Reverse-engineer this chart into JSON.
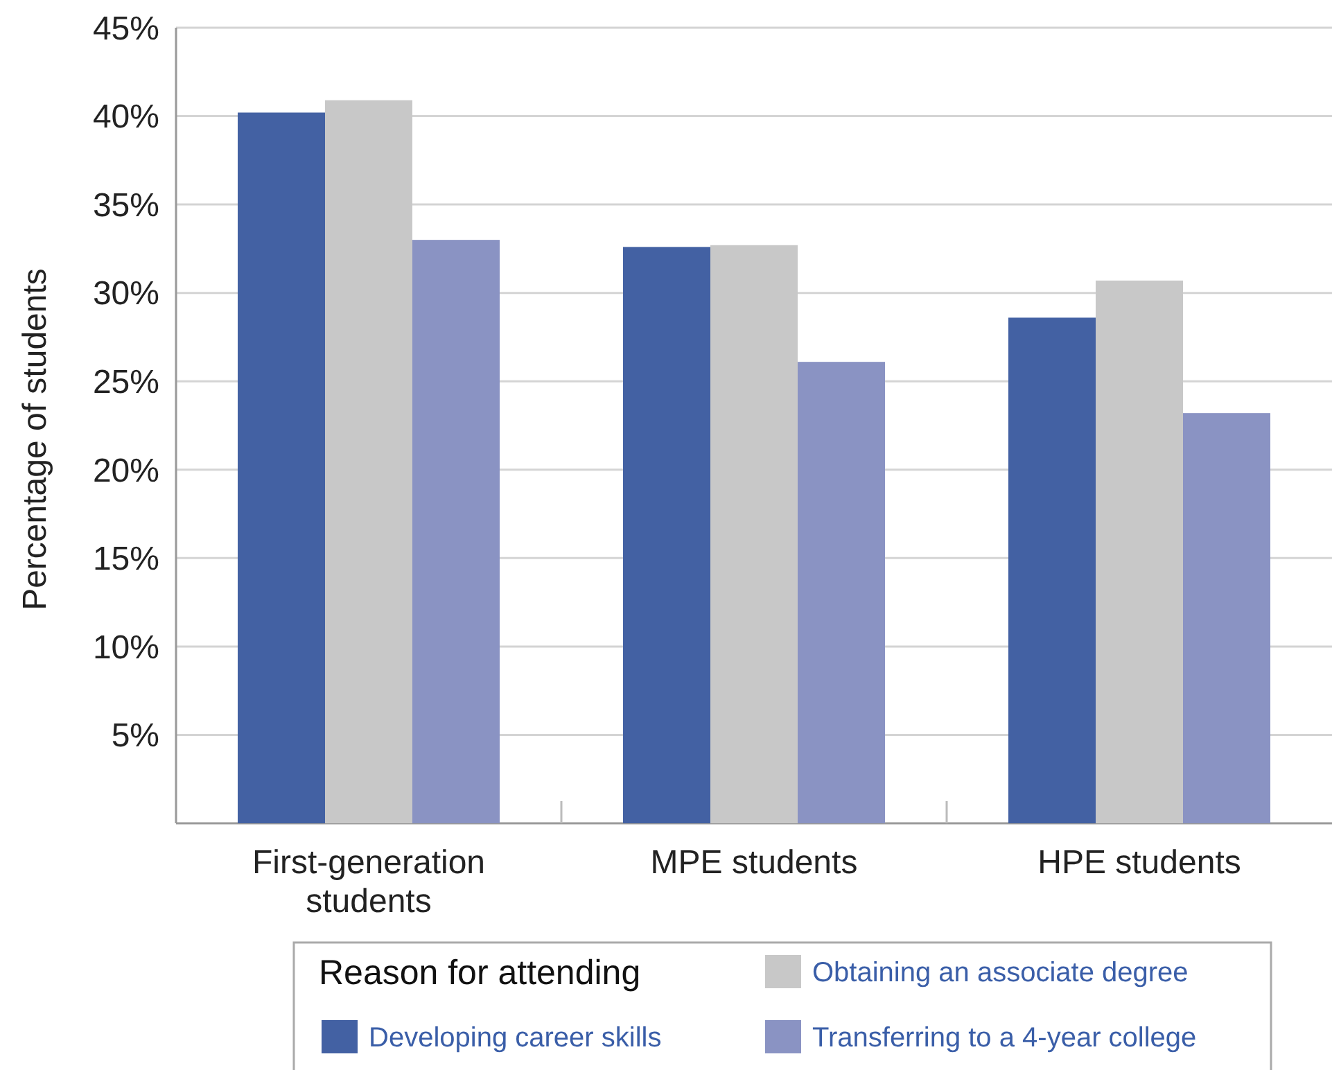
{
  "chart_data": {
    "type": "bar",
    "ylabel": "Percentage of students",
    "legend_title": "Reason for attending",
    "categories": [
      "First-generation\nstudents",
      "MPE students",
      "HPE students"
    ],
    "series": [
      {
        "name": "Developing career skills",
        "color": "#4361a3",
        "values": [
          40.2,
          32.6,
          28.6
        ]
      },
      {
        "name": "Obtaining an associate degree",
        "color": "#c8c8c8",
        "values": [
          40.9,
          32.7,
          30.7
        ]
      },
      {
        "name": "Transferring to a 4-year college",
        "color": "#8a93c3",
        "values": [
          33.0,
          26.1,
          23.2
        ]
      }
    ],
    "ylim": [
      0,
      45
    ],
    "yticks": [
      {
        "value": 5,
        "label": "5%"
      },
      {
        "value": 10,
        "label": "10%"
      },
      {
        "value": 15,
        "label": "15%"
      },
      {
        "value": 20,
        "label": "20%"
      },
      {
        "value": 25,
        "label": "25%"
      },
      {
        "value": 30,
        "label": "30%"
      },
      {
        "value": 35,
        "label": "35%"
      },
      {
        "value": 40,
        "label": "40%"
      },
      {
        "value": 45,
        "label": "45%"
      }
    ],
    "grid": "y",
    "legend": "bottom"
  }
}
